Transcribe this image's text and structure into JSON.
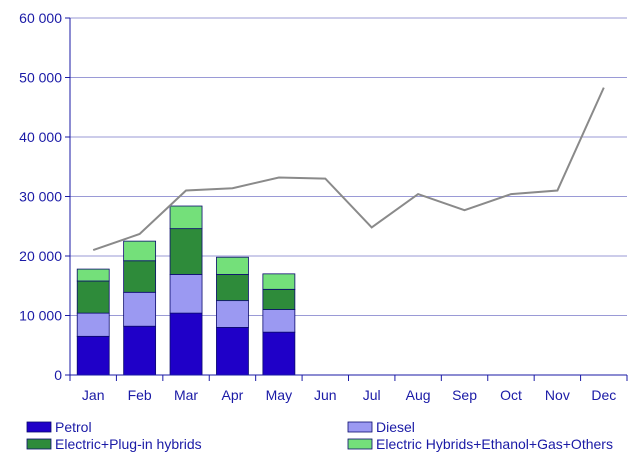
{
  "chart_data": {
    "type": "bar",
    "stacked": true,
    "categories": [
      "Jan",
      "Feb",
      "Mar",
      "Apr",
      "May",
      "Jun",
      "Jul",
      "Aug",
      "Sep",
      "Oct",
      "Nov",
      "Dec"
    ],
    "series": [
      {
        "name": "Petrol",
        "color": "#1f00c8",
        "values": [
          6500,
          8200,
          10400,
          8000,
          7200,
          null,
          null,
          null,
          null,
          null,
          null,
          null
        ]
      },
      {
        "name": "Diesel",
        "color": "#9b99f2",
        "values": [
          3900,
          5700,
          6500,
          4500,
          3800,
          null,
          null,
          null,
          null,
          null,
          null,
          null
        ]
      },
      {
        "name": "Electric+Plug-in hybrids",
        "color": "#2e8b3a",
        "values": [
          5400,
          5300,
          7700,
          4400,
          3400,
          null,
          null,
          null,
          null,
          null,
          null,
          null
        ]
      },
      {
        "name": "Electric Hybrids+Ethanol+Gas+Others",
        "color": "#74e07a",
        "values": [
          2000,
          3300,
          3800,
          2900,
          2600,
          null,
          null,
          null,
          null,
          null,
          null,
          null
        ]
      }
    ],
    "line": {
      "color": "#8a8a8a",
      "values": [
        21000,
        23700,
        31000,
        31400,
        33200,
        33000,
        24800,
        30400,
        27700,
        30400,
        31000,
        48300
      ]
    },
    "ylim": [
      0,
      60000
    ],
    "yticks": [
      {
        "value": 0,
        "label": "0"
      },
      {
        "value": 10000,
        "label": "10 000"
      },
      {
        "value": 20000,
        "label": "20 000"
      },
      {
        "value": 30000,
        "label": "30 000"
      },
      {
        "value": 40000,
        "label": "40 000"
      },
      {
        "value": 50000,
        "label": "50 000"
      },
      {
        "value": 60000,
        "label": "60 000"
      }
    ],
    "grid": true,
    "legend_position": "bottom",
    "title": "",
    "xlabel": "",
    "ylabel": ""
  }
}
